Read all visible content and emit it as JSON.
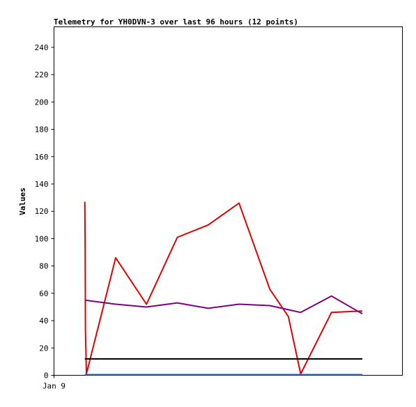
{
  "chart_data": {
    "type": "line",
    "title": "Telemetry for YH0DVN-3 over last 96 hours (12 points)",
    "ylabel": "Values",
    "xlabel": "",
    "ylim": [
      0,
      255
    ],
    "yticks": [
      0,
      20,
      40,
      60,
      80,
      100,
      120,
      140,
      160,
      180,
      200,
      220,
      240
    ],
    "xticks": [
      {
        "x": 0,
        "label": "Jan 9"
      }
    ],
    "xlim": [
      0,
      11.3
    ],
    "grid": false,
    "series": [
      {
        "color": "#e00000",
        "points": [
          [
            1.0,
            127
          ],
          [
            1.01,
            95
          ],
          [
            1.02,
            34
          ],
          [
            1.05,
            1
          ],
          [
            2.0,
            86
          ],
          [
            3.0,
            52
          ],
          [
            4.0,
            101
          ],
          [
            5.0,
            110
          ],
          [
            6.0,
            126
          ],
          [
            7.0,
            63
          ],
          [
            7.6,
            43
          ],
          [
            8.0,
            1
          ],
          [
            9.0,
            46
          ],
          [
            10.0,
            47
          ]
        ]
      },
      {
        "color": "#800080",
        "points": [
          [
            1.0,
            55
          ],
          [
            2.0,
            52
          ],
          [
            3.0,
            50
          ],
          [
            4.0,
            53
          ],
          [
            5.0,
            49
          ],
          [
            6.0,
            52
          ],
          [
            7.0,
            51
          ],
          [
            7.6,
            48
          ],
          [
            8.0,
            46
          ],
          [
            9.0,
            58
          ],
          [
            10.0,
            45
          ]
        ]
      },
      {
        "color": "#000000",
        "points": [
          [
            1.0,
            12
          ],
          [
            10.0,
            12
          ]
        ]
      },
      {
        "color": "#1e6fd0",
        "points": [
          [
            1.0,
            0.5
          ],
          [
            10.0,
            0.5
          ]
        ]
      }
    ]
  }
}
